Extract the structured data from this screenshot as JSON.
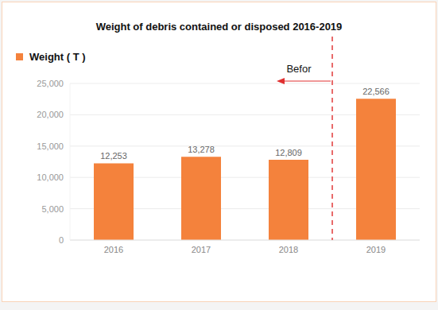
{
  "chart_data": {
    "type": "bar",
    "title": "Weight of debris contained or disposed 2016-2019",
    "categories": [
      "2016",
      "2017",
      "2018",
      "2019"
    ],
    "series": [
      {
        "name": "Weight ( T )",
        "color": "#f4823c",
        "values": [
          12253,
          13278,
          12809,
          22566
        ],
        "value_labels": [
          "12,253",
          "13,278",
          "12,809",
          "22,566"
        ]
      }
    ],
    "ylim": [
      0,
      25000
    ],
    "yticks": [
      0,
      {
        "value": 5000,
        "label": "5,000"
      },
      {
        "value": 10000,
        "label": "10,000"
      },
      {
        "value": 15000,
        "label": "15,000"
      },
      {
        "value": 20000,
        "label": "20,000"
      },
      {
        "value": 25000,
        "label": "25,000"
      }
    ],
    "grid": true,
    "data_labels": true,
    "legend": "top-left",
    "annotation": "Befor"
  }
}
